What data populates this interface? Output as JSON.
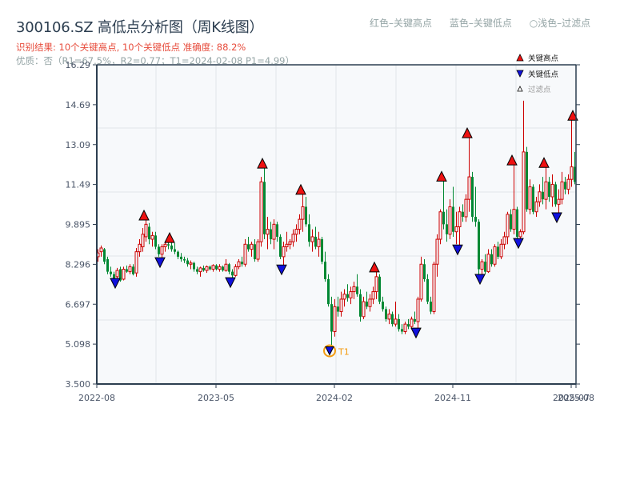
{
  "header": {
    "title": "300106.SZ 高低点分析图（周K线图）",
    "result": "识别结果: 10个关键高点, 10个关键低点  准确度: 88.2%",
    "quality": "优质：否（R1=67.5%，R2=0.77；T1=2024-02-08 P1=4.99）"
  },
  "top_legend": {
    "red": "红色–关键高点",
    "blue": "蓝色–关键低点",
    "light": "○浅色–过滤点"
  },
  "colors": {
    "up": "#cc0000",
    "down": "#008833",
    "high_marker": "#ee1111",
    "low_marker": "#1111dd",
    "t1_ring": "#f39c12",
    "plot_bg": "#f7f9fb",
    "grid": "#e2e5ea",
    "axis": "#2c3e50"
  },
  "chart_data": {
    "type": "candlestick",
    "title": "300106.SZ 高低点分析图（周K线图）",
    "xlabel": "",
    "ylabel": "",
    "ylim": [
      3.5,
      16.29
    ],
    "yticks": [
      "16.29",
      "14.69",
      "13.09",
      "11.49",
      "9.895",
      "8.296",
      "6.697",
      "5.098",
      "3.500"
    ],
    "xticks": [
      "2022-08",
      "2023-05",
      "2024-02",
      "2024-11",
      "2025-07",
      "2025-08"
    ],
    "grid": true,
    "legend": {
      "position": "upper right",
      "entries": [
        "关键高点",
        "关键低点",
        "过滤点"
      ]
    },
    "key_highs": [
      {
        "x": 180,
        "price": 10.07
      },
      {
        "x": 212,
        "price": 9.17
      },
      {
        "x": 328,
        "price": 12.15
      },
      {
        "x": 376,
        "price": 11.1
      },
      {
        "x": 468,
        "price": 7.99
      },
      {
        "x": 552,
        "price": 11.63
      },
      {
        "x": 584,
        "price": 13.37
      },
      {
        "x": 640,
        "price": 12.28
      },
      {
        "x": 680,
        "price": 12.18
      },
      {
        "x": 716,
        "price": 14.07
      }
    ],
    "key_lows": [
      {
        "x": 144,
        "price": 7.73
      },
      {
        "x": 200,
        "price": 8.56
      },
      {
        "x": 288,
        "price": 7.76
      },
      {
        "x": 352,
        "price": 8.27
      },
      {
        "x": 412,
        "price": 4.99,
        "label": "T1"
      },
      {
        "x": 520,
        "price": 5.74
      },
      {
        "x": 572,
        "price": 9.07
      },
      {
        "x": 600,
        "price": 7.89
      },
      {
        "x": 648,
        "price": 9.33
      },
      {
        "x": 696,
        "price": 10.36
      }
    ],
    "annotation": {
      "text": "T1",
      "date": "2024-02-08",
      "price": 4.99
    },
    "candles_note": "weekly OHLC approximated from pixels: [x, open, high, low, close]",
    "candles": [
      [
        121,
        8.6,
        8.9,
        8.4,
        8.75
      ],
      [
        125,
        8.8,
        9.05,
        8.6,
        8.95
      ],
      [
        129,
        8.9,
        8.95,
        8.3,
        8.4
      ],
      [
        133,
        8.5,
        8.6,
        7.9,
        8.0
      ],
      [
        137,
        8.0,
        8.2,
        7.8,
        7.9
      ],
      [
        141,
        7.9,
        8.0,
        7.6,
        7.7
      ],
      [
        145,
        7.8,
        8.15,
        7.75,
        8.05
      ],
      [
        149,
        8.1,
        8.2,
        7.6,
        7.65
      ],
      [
        153,
        7.7,
        8.2,
        7.65,
        8.1
      ],
      [
        157,
        8.1,
        8.25,
        7.95,
        8.0
      ],
      [
        161,
        8.0,
        8.3,
        7.9,
        8.2
      ],
      [
        165,
        8.2,
        8.3,
        7.85,
        7.9
      ],
      [
        169,
        7.95,
        8.95,
        7.8,
        8.8
      ],
      [
        173,
        8.8,
        9.3,
        8.6,
        9.1
      ],
      [
        177,
        9.0,
        9.75,
        8.8,
        9.5
      ],
      [
        181,
        9.4,
        10.07,
        9.2,
        9.9
      ],
      [
        185,
        9.8,
        9.95,
        9.1,
        9.3
      ],
      [
        189,
        9.3,
        9.6,
        9.0,
        9.45
      ],
      [
        193,
        9.45,
        9.6,
        8.9,
        9.0
      ],
      [
        197,
        9.0,
        9.1,
        8.6,
        8.7
      ],
      [
        201,
        8.7,
        9.1,
        8.56,
        9.0
      ],
      [
        205,
        9.0,
        9.2,
        8.8,
        9.1
      ],
      [
        209,
        9.1,
        9.17,
        8.9,
        9.05
      ],
      [
        213,
        9.05,
        9.17,
        8.8,
        8.9
      ],
      [
        217,
        8.9,
        9.15,
        8.7,
        8.8
      ],
      [
        221,
        8.8,
        8.85,
        8.5,
        8.6
      ],
      [
        225,
        8.6,
        8.75,
        8.4,
        8.5
      ],
      [
        229,
        8.5,
        8.6,
        8.35,
        8.45
      ],
      [
        233,
        8.45,
        8.55,
        8.2,
        8.3
      ],
      [
        237,
        8.3,
        8.45,
        8.1,
        8.35
      ],
      [
        241,
        8.35,
        8.4,
        8.0,
        8.1
      ],
      [
        245,
        8.1,
        8.2,
        7.9,
        8.0
      ],
      [
        249,
        8.0,
        8.2,
        7.8,
        8.15
      ],
      [
        253,
        8.15,
        8.25,
        8.0,
        8.05
      ],
      [
        257,
        8.05,
        8.25,
        7.95,
        8.2
      ],
      [
        261,
        8.2,
        8.25,
        8.05,
        8.1
      ],
      [
        265,
        8.1,
        8.3,
        8.0,
        8.25
      ],
      [
        269,
        8.25,
        8.3,
        8.05,
        8.1
      ],
      [
        273,
        8.1,
        8.3,
        8.0,
        8.2
      ],
      [
        277,
        8.2,
        8.25,
        8.0,
        8.05
      ],
      [
        281,
        8.05,
        8.5,
        8.0,
        8.3
      ],
      [
        285,
        8.3,
        8.35,
        7.9,
        8.0
      ],
      [
        289,
        8.0,
        8.1,
        7.76,
        7.85
      ],
      [
        293,
        7.85,
        8.3,
        7.8,
        8.2
      ],
      [
        297,
        8.2,
        8.5,
        8.1,
        8.4
      ],
      [
        301,
        8.4,
        8.6,
        8.2,
        8.3
      ],
      [
        305,
        8.3,
        9.3,
        8.2,
        9.1
      ],
      [
        309,
        9.1,
        9.4,
        8.8,
        8.9
      ],
      [
        313,
        8.9,
        9.2,
        8.6,
        9.1
      ],
      [
        317,
        9.1,
        9.3,
        8.4,
        8.5
      ],
      [
        321,
        8.5,
        9.3,
        8.4,
        9.2
      ],
      [
        325,
        9.2,
        11.8,
        9.0,
        11.6
      ],
      [
        329,
        11.6,
        12.15,
        9.3,
        9.5
      ],
      [
        333,
        9.5,
        10.2,
        8.9,
        9.7
      ],
      [
        337,
        9.7,
        10.0,
        9.1,
        9.3
      ],
      [
        341,
        9.3,
        10.1,
        8.9,
        9.9
      ],
      [
        345,
        9.9,
        10.0,
        9.2,
        9.4
      ],
      [
        349,
        9.4,
        9.5,
        8.5,
        8.6
      ],
      [
        353,
        8.6,
        9.2,
        8.27,
        9.0
      ],
      [
        357,
        9.0,
        9.6,
        8.8,
        9.1
      ],
      [
        361,
        9.1,
        9.3,
        8.9,
        9.2
      ],
      [
        365,
        9.2,
        9.7,
        9.0,
        9.5
      ],
      [
        369,
        9.5,
        9.9,
        9.2,
        9.7
      ],
      [
        373,
        9.7,
        10.3,
        9.5,
        10.1
      ],
      [
        377,
        10.1,
        11.1,
        9.6,
        10.6
      ],
      [
        381,
        10.6,
        11.0,
        9.8,
        9.9
      ],
      [
        385,
        9.9,
        10.3,
        9.0,
        9.2
      ],
      [
        389,
        9.2,
        9.7,
        8.8,
        9.4
      ],
      [
        393,
        9.4,
        9.8,
        8.9,
        9.0
      ],
      [
        397,
        9.0,
        9.6,
        8.6,
        9.3
      ],
      [
        401,
        9.3,
        9.4,
        8.3,
        8.4
      ],
      [
        405,
        8.4,
        8.8,
        7.6,
        7.7
      ],
      [
        409,
        7.7,
        7.9,
        6.6,
        6.7
      ],
      [
        413,
        6.7,
        7.0,
        4.99,
        5.6
      ],
      [
        417,
        5.6,
        6.9,
        5.4,
        6.6
      ],
      [
        421,
        6.6,
        7.0,
        6.2,
        6.4
      ],
      [
        425,
        6.4,
        7.2,
        6.2,
        6.9
      ],
      [
        429,
        6.9,
        7.3,
        6.6,
        7.1
      ],
      [
        433,
        7.1,
        7.5,
        6.8,
        6.95
      ],
      [
        437,
        6.95,
        7.4,
        6.7,
        7.2
      ],
      [
        441,
        7.2,
        7.6,
        6.9,
        7.4
      ],
      [
        445,
        7.4,
        7.9,
        7.0,
        7.1
      ],
      [
        449,
        7.1,
        7.3,
        6.0,
        6.2
      ],
      [
        453,
        6.2,
        7.0,
        6.1,
        6.8
      ],
      [
        457,
        6.8,
        7.2,
        6.5,
        6.6
      ],
      [
        461,
        6.6,
        7.1,
        6.4,
        6.9
      ],
      [
        465,
        6.9,
        7.4,
        6.7,
        7.2
      ],
      [
        469,
        7.2,
        7.99,
        6.9,
        7.8
      ],
      [
        473,
        7.8,
        7.9,
        6.7,
        6.8
      ],
      [
        477,
        6.8,
        7.0,
        6.4,
        6.5
      ],
      [
        481,
        6.5,
        6.6,
        6.0,
        6.1
      ],
      [
        485,
        6.1,
        6.5,
        5.9,
        6.3
      ],
      [
        489,
        6.3,
        6.4,
        5.8,
        5.9
      ],
      [
        493,
        5.9,
        6.8,
        5.8,
        6.1
      ],
      [
        497,
        6.1,
        6.3,
        5.6,
        5.7
      ],
      [
        501,
        5.7,
        5.9,
        5.5,
        5.6
      ],
      [
        505,
        5.6,
        6.0,
        5.5,
        5.9
      ],
      [
        509,
        5.9,
        6.1,
        5.7,
        5.8
      ],
      [
        513,
        5.8,
        6.2,
        5.7,
        6.1
      ],
      [
        517,
        6.1,
        6.4,
        5.9,
        6.0
      ],
      [
        521,
        6.0,
        7.0,
        5.74,
        6.9
      ],
      [
        525,
        6.9,
        8.6,
        6.8,
        8.3
      ],
      [
        529,
        8.3,
        8.5,
        7.6,
        7.7
      ],
      [
        533,
        7.7,
        7.9,
        6.7,
        6.8
      ],
      [
        537,
        6.8,
        7.0,
        6.3,
        6.4
      ],
      [
        541,
        6.4,
        8.4,
        6.3,
        8.3
      ],
      [
        545,
        8.3,
        9.5,
        7.8,
        9.3
      ],
      [
        549,
        9.3,
        10.5,
        9.1,
        10.4
      ],
      [
        553,
        10.4,
        11.63,
        9.7,
        9.9
      ],
      [
        557,
        9.9,
        10.5,
        9.2,
        9.5
      ],
      [
        561,
        9.5,
        10.9,
        9.3,
        10.6
      ],
      [
        565,
        10.6,
        11.4,
        9.4,
        9.6
      ],
      [
        569,
        9.6,
        10.4,
        9.1,
        9.8
      ],
      [
        573,
        9.8,
        10.6,
        9.07,
        10.4
      ],
      [
        577,
        10.4,
        10.7,
        10.0,
        10.2
      ],
      [
        581,
        10.2,
        11.1,
        10.0,
        10.9
      ],
      [
        585,
        10.9,
        13.37,
        10.4,
        11.8
      ],
      [
        589,
        11.8,
        12.0,
        10.0,
        10.2
      ],
      [
        593,
        10.2,
        11.4,
        9.8,
        10.0
      ],
      [
        597,
        10.0,
        10.1,
        7.9,
        8.1
      ],
      [
        601,
        8.1,
        8.5,
        7.89,
        8.4
      ],
      [
        605,
        8.4,
        8.7,
        7.9,
        8.0
      ],
      [
        609,
        8.0,
        8.9,
        7.95,
        8.7
      ],
      [
        613,
        8.7,
        8.9,
        8.2,
        8.3
      ],
      [
        617,
        8.3,
        9.1,
        8.2,
        9.0
      ],
      [
        621,
        9.0,
        9.2,
        8.5,
        8.6
      ],
      [
        625,
        8.6,
        9.3,
        8.5,
        9.1
      ],
      [
        629,
        9.1,
        9.6,
        8.9,
        9.4
      ],
      [
        633,
        9.4,
        10.4,
        9.1,
        10.3
      ],
      [
        637,
        10.3,
        10.5,
        9.6,
        9.7
      ],
      [
        641,
        9.7,
        12.28,
        9.5,
        10.5
      ],
      [
        645,
        10.5,
        10.6,
        9.3,
        9.4
      ],
      [
        649,
        9.4,
        9.7,
        9.33,
        9.6
      ],
      [
        653,
        9.6,
        14.85,
        9.5,
        12.8
      ],
      [
        657,
        12.8,
        13.0,
        10.4,
        10.5
      ],
      [
        661,
        10.5,
        11.7,
        10.3,
        11.4
      ],
      [
        665,
        11.4,
        11.5,
        10.3,
        10.4
      ],
      [
        669,
        10.4,
        11.0,
        10.2,
        10.8
      ],
      [
        673,
        10.8,
        11.5,
        10.6,
        11.2
      ],
      [
        677,
        11.2,
        11.8,
        10.7,
        10.9
      ],
      [
        681,
        10.9,
        12.18,
        10.5,
        11.6
      ],
      [
        685,
        11.6,
        11.8,
        10.8,
        11.0
      ],
      [
        689,
        11.0,
        11.9,
        10.6,
        11.5
      ],
      [
        693,
        11.5,
        11.6,
        10.6,
        10.7
      ],
      [
        697,
        10.7,
        11.3,
        10.36,
        10.9
      ],
      [
        701,
        10.9,
        12.0,
        10.7,
        11.6
      ],
      [
        705,
        11.6,
        11.8,
        11.1,
        11.3
      ],
      [
        709,
        11.3,
        11.9,
        11.1,
        11.7
      ],
      [
        713,
        11.7,
        14.07,
        11.4,
        12.2
      ],
      [
        717,
        12.2,
        12.8,
        11.5,
        11.6
      ]
    ]
  }
}
